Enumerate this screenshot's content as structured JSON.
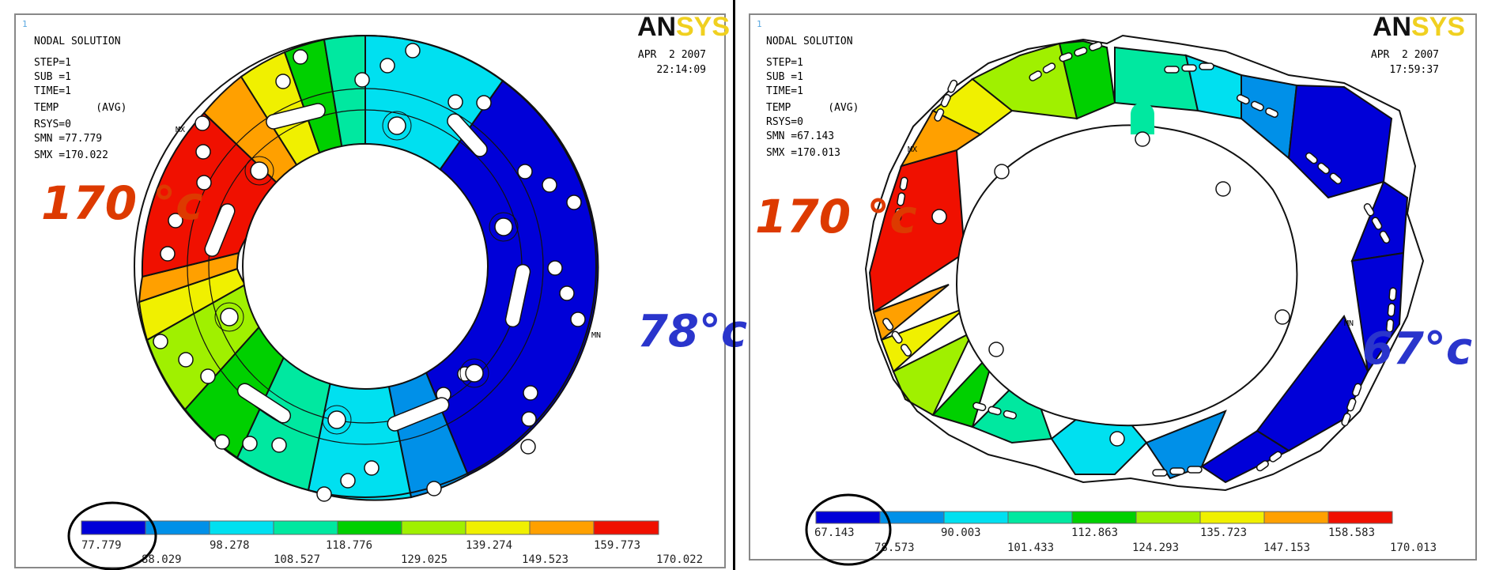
{
  "panels": [
    {
      "corner_id": "1",
      "nodal": [
        "NODAL SOLUTION",
        "STEP=1",
        "SUB =1",
        "TIME=1",
        "TEMP      (AVG)",
        "RSYS=0",
        "SMN =77.779",
        "SMX =170.022"
      ],
      "date": "APR  2 2007",
      "time": "22:14:09",
      "logo_dark": "AN",
      "logo_light": "SYS",
      "mx": "MX",
      "mn": "MN",
      "hot_label": "170 °c",
      "cold_label": "78°c",
      "legend_values": [
        "77.779",
        "88.029",
        "98.278",
        "108.527",
        "118.776",
        "129.025",
        "139.274",
        "149.523",
        "159.773",
        "170.022"
      ]
    },
    {
      "corner_id": "1",
      "nodal": [
        "NODAL SOLUTION",
        "STEP=1",
        "SUB =1",
        "TIME=1",
        "TEMP      (AVG)",
        "RSYS=0",
        "SMN =67.143",
        "SMX =170.013"
      ],
      "date": "APR  2 2007",
      "time": "17:59:37",
      "logo_dark": "AN",
      "logo_light": "SYS",
      "mx": "MX",
      "mn": "MN",
      "hot_label": "170 °c",
      "cold_label": "67°c",
      "legend_values": [
        "67.143",
        "78.573",
        "90.003",
        "101.433",
        "112.863",
        "124.293",
        "135.723",
        "147.153",
        "158.583",
        "170.013"
      ]
    }
  ],
  "palette": [
    "#0000d8",
    "#0090e8",
    "#00e0f0",
    "#00e8a0",
    "#00d000",
    "#a0f000",
    "#f0f000",
    "#ffa000",
    "#f01000"
  ]
}
